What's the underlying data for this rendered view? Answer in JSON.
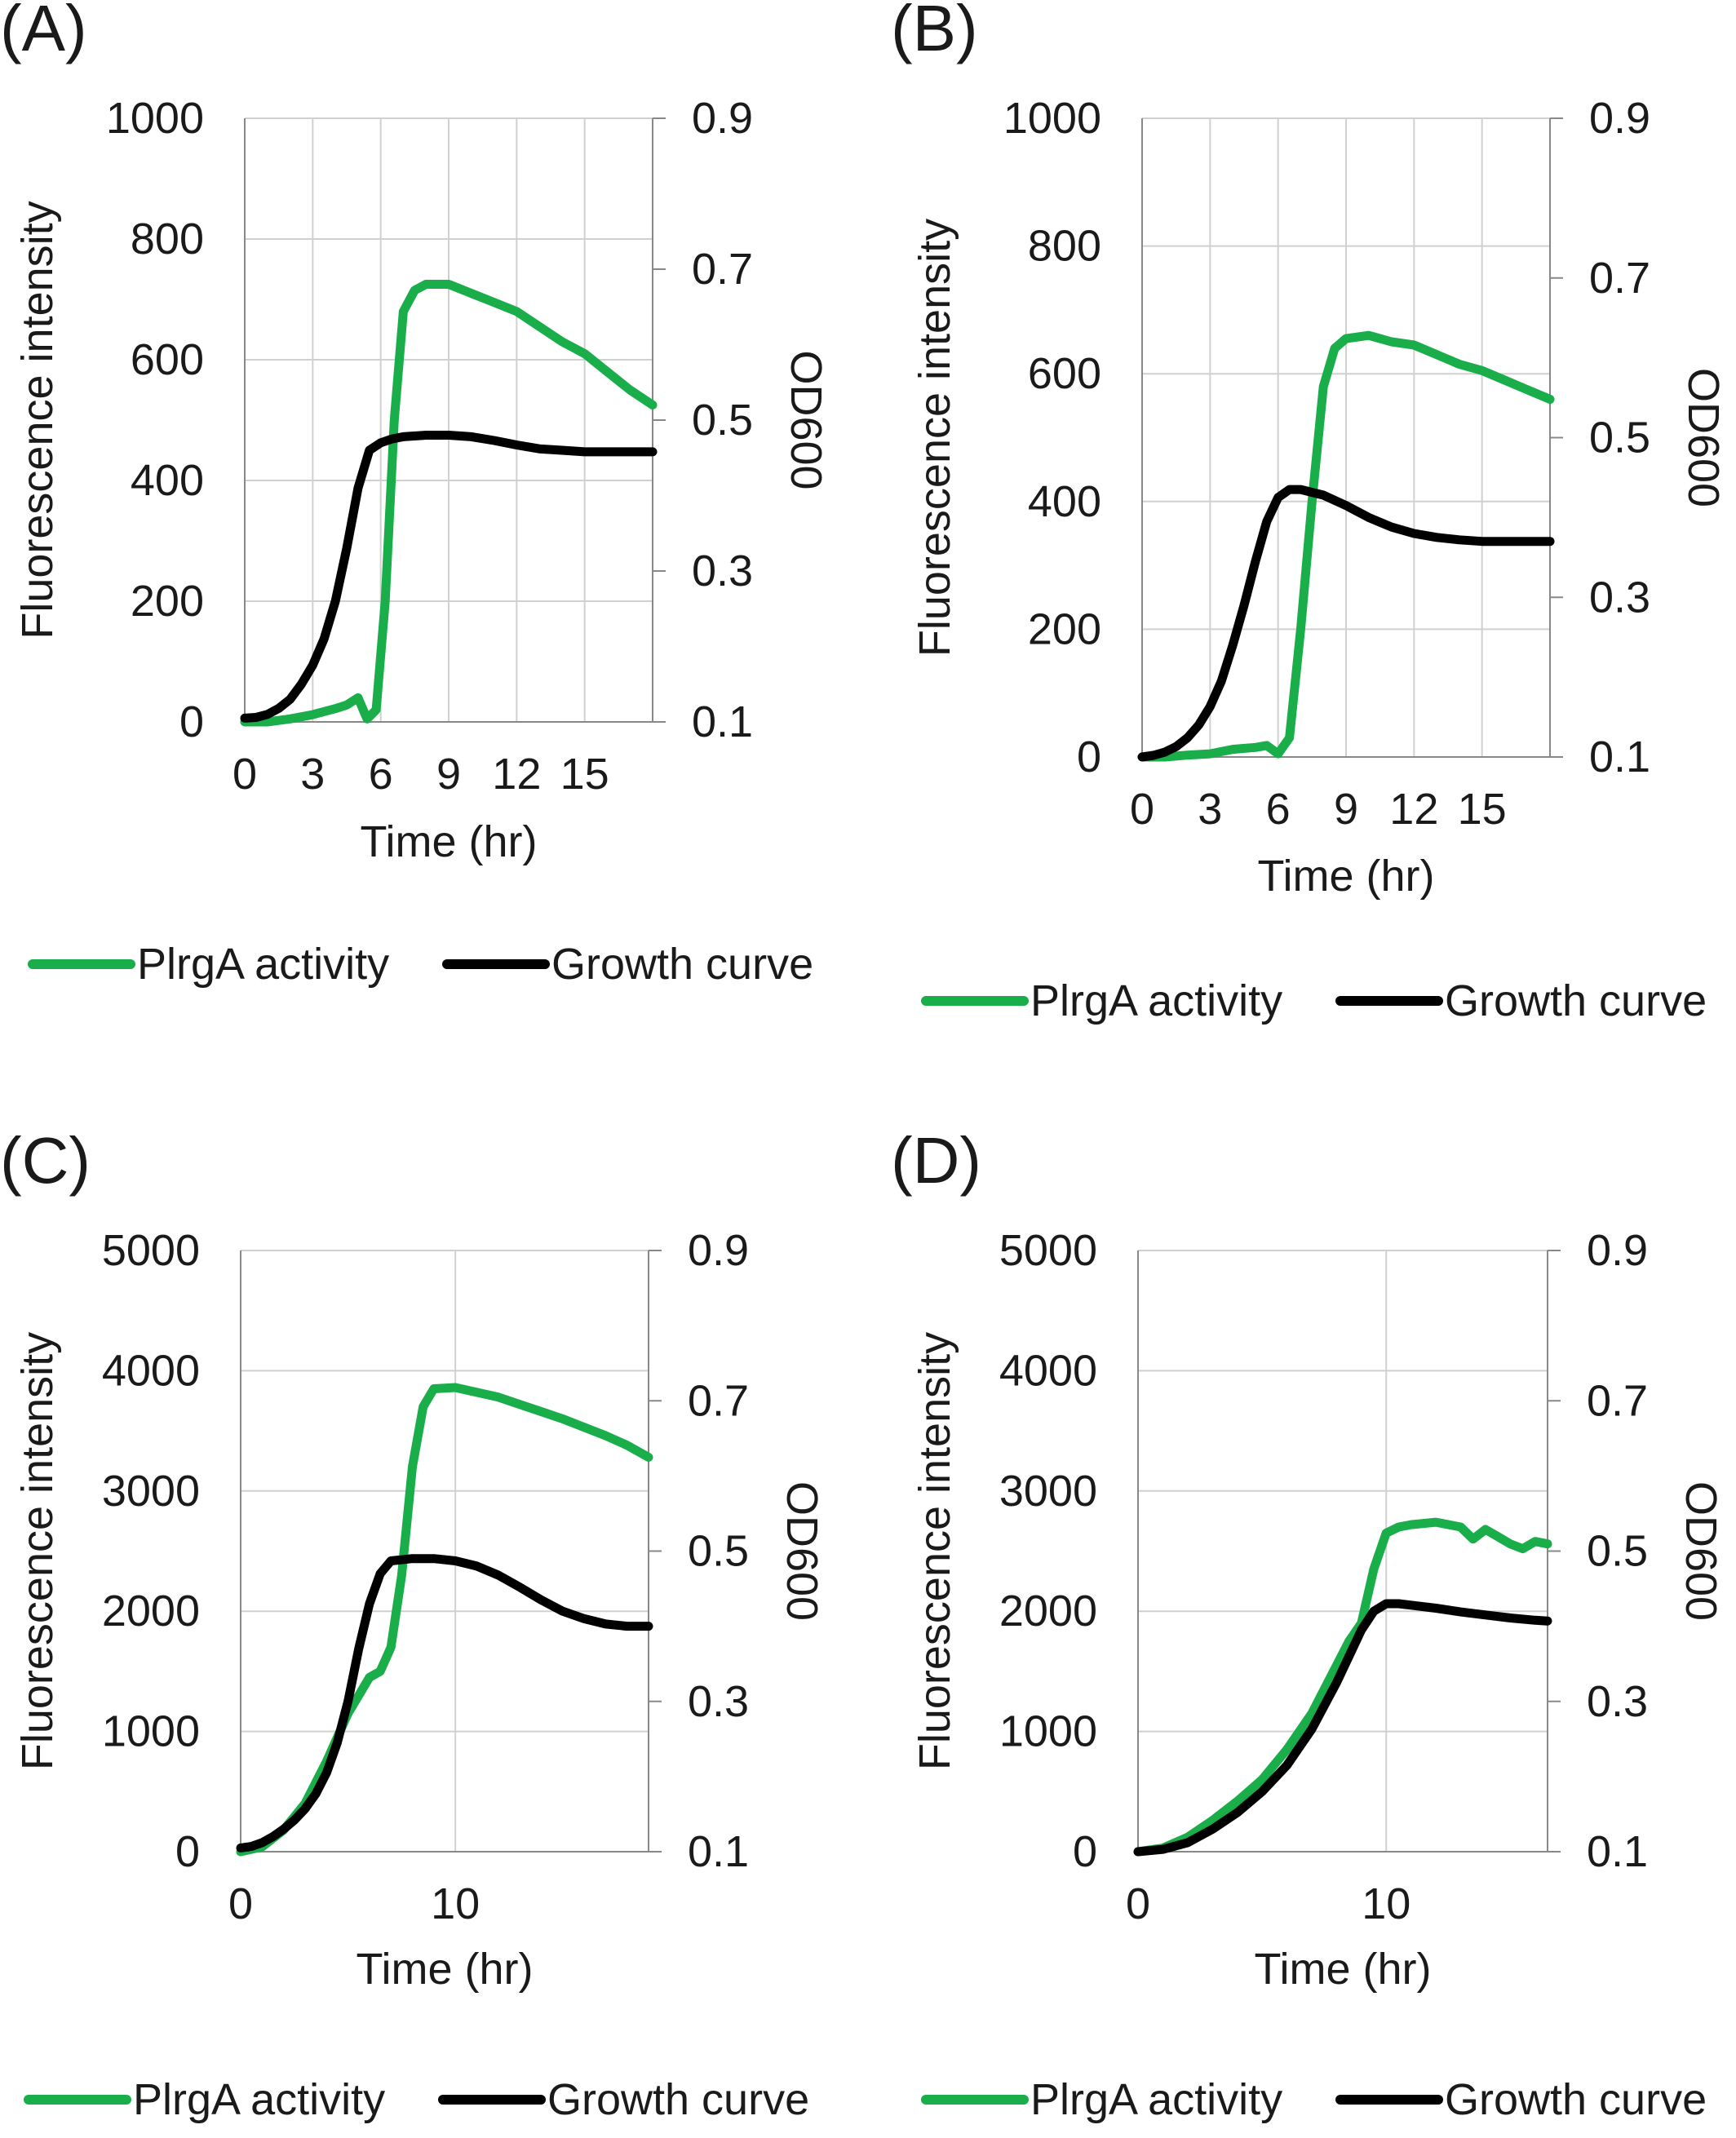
{
  "colors": {
    "plrga": "#1aae4a",
    "growth": "#000000",
    "grid": "#d0d0d0",
    "axis": "#888888"
  },
  "chart_data": [
    {
      "panel": "(A)",
      "type": "line",
      "xlabel": "Time (hr)",
      "ylabel": "Fluorescence intensity",
      "y2label": "OD600",
      "xlim": [
        0,
        18
      ],
      "xticks": [
        0,
        3,
        6,
        9,
        12,
        15
      ],
      "ylim": [
        0,
        1000
      ],
      "yticks": [
        0,
        200,
        400,
        600,
        800,
        1000
      ],
      "y2lim": [
        0.1,
        0.9
      ],
      "y2ticks": [
        0.1,
        0.3,
        0.5,
        0.7,
        0.9
      ],
      "grid": "vertical",
      "legend": [
        "PlrgA activity",
        "Growth curve"
      ],
      "legend_position": "bottom",
      "series": [
        {
          "name": "PlrgA activity",
          "axis": "left",
          "x": [
            0,
            1,
            2,
            3,
            4,
            4.5,
            5,
            5.4,
            5.8,
            6.2,
            6.6,
            7,
            7.5,
            8,
            9,
            10,
            11,
            12,
            13,
            14,
            15,
            16,
            17,
            18
          ],
          "y": [
            0,
            0,
            5,
            12,
            22,
            28,
            40,
            5,
            20,
            200,
            500,
            680,
            715,
            725,
            725,
            710,
            695,
            680,
            655,
            630,
            610,
            580,
            550,
            525
          ]
        },
        {
          "name": "Growth curve",
          "axis": "right",
          "x": [
            0,
            0.5,
            1,
            1.5,
            2,
            2.5,
            3,
            3.5,
            4,
            4.5,
            5,
            5.5,
            6,
            6.5,
            7,
            8,
            9,
            10,
            11,
            12,
            13,
            14,
            15,
            16,
            17,
            18
          ],
          "y": [
            0.105,
            0.106,
            0.11,
            0.118,
            0.13,
            0.15,
            0.175,
            0.21,
            0.26,
            0.33,
            0.41,
            0.46,
            0.47,
            0.475,
            0.478,
            0.48,
            0.48,
            0.478,
            0.473,
            0.467,
            0.462,
            0.46,
            0.458,
            0.458,
            0.458,
            0.458
          ]
        }
      ]
    },
    {
      "panel": "(B)",
      "type": "line",
      "xlabel": "Time (hr)",
      "ylabel": "Fluorescence intensity",
      "y2label": "OD600",
      "xlim": [
        0,
        18
      ],
      "xticks": [
        0,
        3,
        6,
        9,
        12,
        15
      ],
      "ylim": [
        0,
        1000
      ],
      "yticks": [
        0,
        200,
        400,
        600,
        800,
        1000
      ],
      "y2lim": [
        0.1,
        0.9
      ],
      "y2ticks": [
        0.1,
        0.3,
        0.5,
        0.7,
        0.9
      ],
      "grid": "vertical",
      "legend": [
        "PlrgA activity",
        "Growth curve"
      ],
      "legend_position": "bottom",
      "series": [
        {
          "name": "PlrgA activity",
          "axis": "left",
          "x": [
            0,
            1,
            2,
            3,
            4,
            5,
            5.5,
            6,
            6.5,
            7,
            7.5,
            8,
            8.5,
            9,
            10,
            11,
            12,
            13,
            14,
            15,
            16,
            17,
            18
          ],
          "y": [
            0,
            0,
            3,
            5,
            12,
            15,
            18,
            5,
            30,
            200,
            400,
            580,
            640,
            655,
            660,
            650,
            645,
            630,
            615,
            605,
            590,
            575,
            560
          ]
        },
        {
          "name": "Growth curve",
          "axis": "right",
          "x": [
            0,
            0.5,
            1,
            1.5,
            2,
            2.5,
            3,
            3.5,
            4,
            4.5,
            5,
            5.5,
            6,
            6.5,
            7,
            8,
            9,
            10,
            11,
            12,
            13,
            14,
            15,
            16,
            17,
            18
          ],
          "y": [
            0.1,
            0.102,
            0.106,
            0.113,
            0.124,
            0.14,
            0.163,
            0.195,
            0.24,
            0.29,
            0.345,
            0.395,
            0.425,
            0.435,
            0.435,
            0.428,
            0.415,
            0.4,
            0.388,
            0.38,
            0.375,
            0.372,
            0.37,
            0.37,
            0.37,
            0.37
          ]
        }
      ]
    },
    {
      "panel": "(C)",
      "type": "line",
      "xlabel": "Time (hr)",
      "ylabel": "Fluorescence intensity",
      "y2label": "OD600",
      "xlim": [
        0,
        19
      ],
      "xticks": [
        0,
        10
      ],
      "ylim": [
        0,
        5000
      ],
      "yticks": [
        0,
        1000,
        2000,
        3000,
        4000,
        5000
      ],
      "y2lim": [
        0.1,
        0.9
      ],
      "y2ticks": [
        0.1,
        0.3,
        0.5,
        0.7,
        0.9
      ],
      "grid": "vertical",
      "legend": [
        "PlrgA activity",
        "Growth curve"
      ],
      "legend_position": "bottom",
      "series": [
        {
          "name": "PlrgA activity",
          "axis": "left",
          "x": [
            0,
            1,
            2,
            3,
            4,
            5,
            6,
            6.5,
            7,
            7.5,
            8,
            8.5,
            9,
            10,
            11,
            12,
            13,
            14,
            15,
            16,
            17,
            18,
            19
          ],
          "y": [
            0,
            40,
            180,
            400,
            750,
            1150,
            1450,
            1500,
            1700,
            2300,
            3200,
            3700,
            3850,
            3860,
            3820,
            3780,
            3720,
            3660,
            3600,
            3530,
            3460,
            3380,
            3280
          ]
        },
        {
          "name": "Growth curve",
          "axis": "right",
          "x": [
            0,
            0.5,
            1,
            1.5,
            2,
            2.5,
            3,
            3.5,
            4,
            4.5,
            5,
            5.5,
            6,
            6.5,
            7,
            8,
            9,
            10,
            11,
            12,
            13,
            14,
            15,
            16,
            17,
            18,
            19
          ],
          "y": [
            0.105,
            0.107,
            0.112,
            0.12,
            0.13,
            0.142,
            0.157,
            0.177,
            0.205,
            0.245,
            0.3,
            0.37,
            0.43,
            0.47,
            0.487,
            0.49,
            0.49,
            0.487,
            0.48,
            0.468,
            0.452,
            0.435,
            0.42,
            0.41,
            0.403,
            0.4,
            0.4
          ]
        }
      ]
    },
    {
      "panel": "(D)",
      "type": "line",
      "xlabel": "Time (hr)",
      "ylabel": "Fluorescence intensity",
      "y2label": "OD600",
      "xlim": [
        0,
        16.5
      ],
      "xticks": [
        0,
        10
      ],
      "ylim": [
        0,
        5000
      ],
      "yticks": [
        0,
        1000,
        2000,
        3000,
        4000,
        5000
      ],
      "y2lim": [
        0.1,
        0.9
      ],
      "y2ticks": [
        0.1,
        0.3,
        0.5,
        0.7,
        0.9
      ],
      "grid": "vertical",
      "legend": [
        "PlrgA activity",
        "Growth curve"
      ],
      "legend_position": "bottom",
      "series": [
        {
          "name": "PlrgA activity",
          "axis": "left",
          "x": [
            0,
            1,
            2,
            3,
            4,
            5,
            6,
            7,
            8,
            8.5,
            9,
            9.5,
            10,
            10.5,
            11,
            12,
            13,
            13.5,
            14,
            14.5,
            15,
            15.5,
            16,
            16.5
          ],
          "y": [
            0,
            30,
            120,
            260,
            420,
            600,
            850,
            1150,
            1550,
            1750,
            1900,
            2350,
            2650,
            2700,
            2720,
            2740,
            2700,
            2600,
            2680,
            2620,
            2560,
            2520,
            2580,
            2560
          ]
        },
        {
          "name": "Growth curve",
          "axis": "right",
          "x": [
            0,
            1,
            2,
            3,
            4,
            5,
            6,
            7,
            8,
            8.5,
            9,
            9.5,
            10,
            10.5,
            11,
            12,
            13,
            14,
            15,
            16,
            16.5
          ],
          "y": [
            0.1,
            0.103,
            0.112,
            0.13,
            0.152,
            0.18,
            0.215,
            0.263,
            0.325,
            0.36,
            0.395,
            0.42,
            0.43,
            0.43,
            0.428,
            0.424,
            0.419,
            0.415,
            0.411,
            0.408,
            0.407
          ]
        }
      ]
    }
  ]
}
